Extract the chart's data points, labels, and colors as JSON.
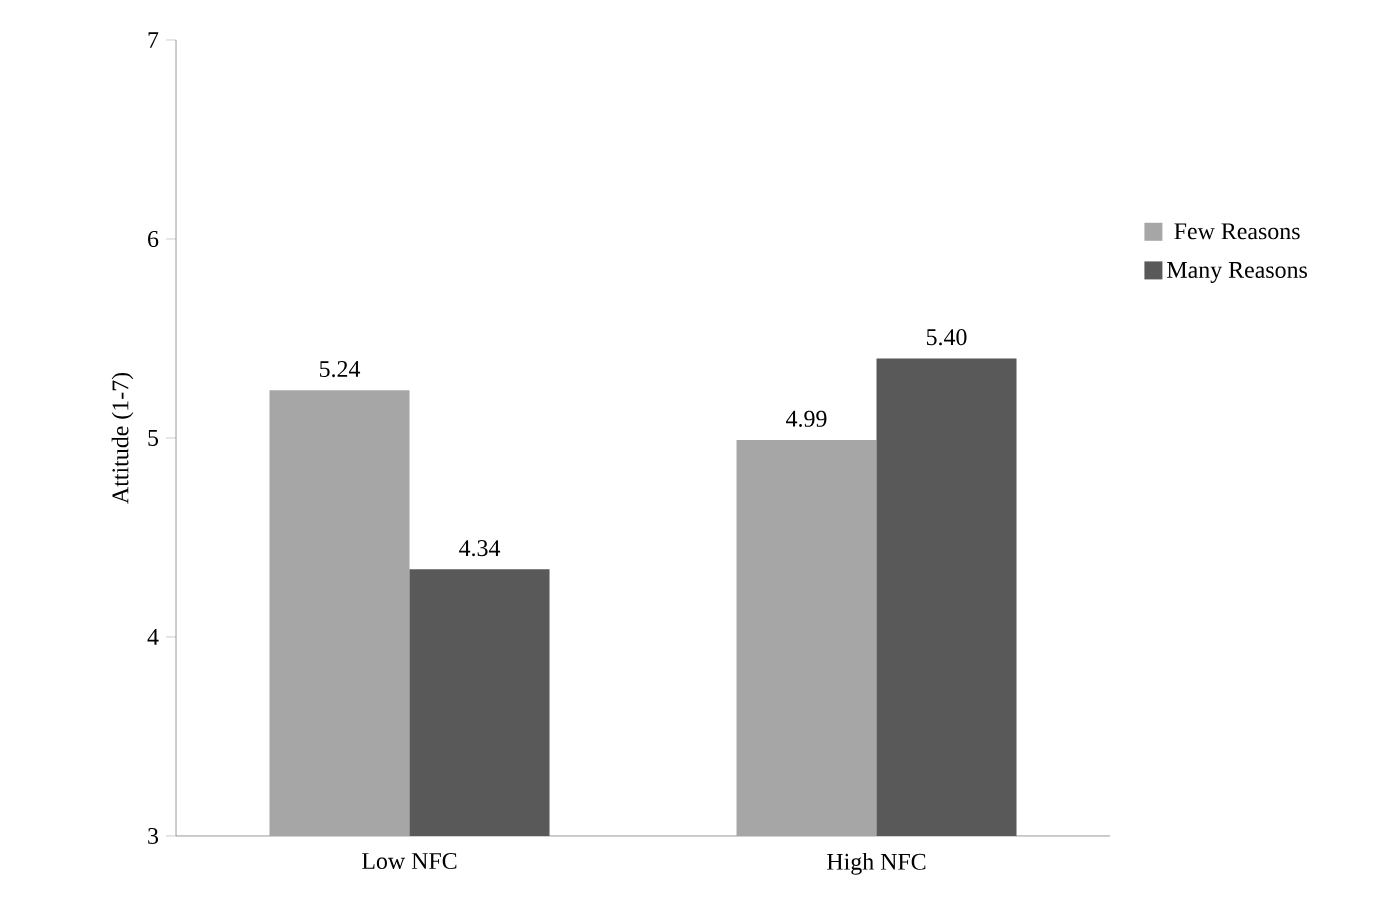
{
  "chart_data": {
    "type": "bar",
    "ylabel": "Attitude (1-7)",
    "categories": [
      "Low NFC",
      "High NFC"
    ],
    "series": [
      {
        "name": "Few Reasons",
        "color": "#a6a6a6",
        "values": [
          5.24,
          4.99
        ],
        "value_labels": [
          "5.24",
          "4.99"
        ]
      },
      {
        "name": "Many Reasons",
        "color": "#595959",
        "values": [
          4.34,
          5.4
        ],
        "value_labels": [
          "4.34",
          "5.40"
        ]
      }
    ],
    "ylim": [
      3,
      7
    ],
    "yticks": [
      3,
      4,
      5,
      6,
      7
    ],
    "legend": "right",
    "grid": false
  }
}
